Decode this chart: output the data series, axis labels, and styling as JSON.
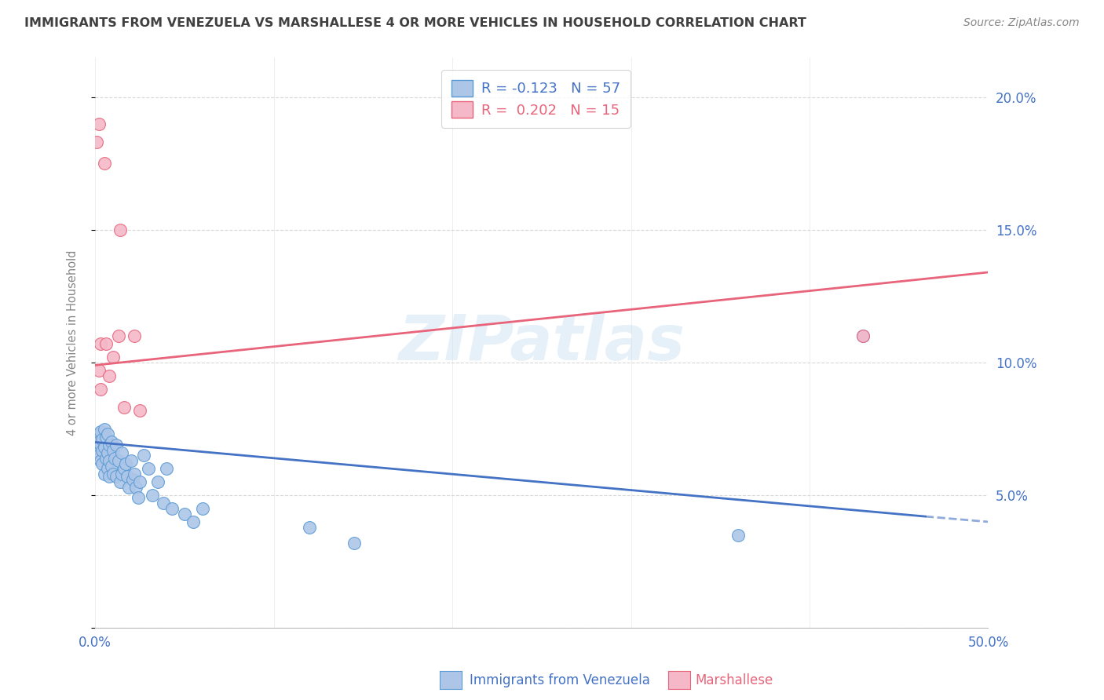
{
  "title": "IMMIGRANTS FROM VENEZUELA VS MARSHALLESE 4 OR MORE VEHICLES IN HOUSEHOLD CORRELATION CHART",
  "source": "Source: ZipAtlas.com",
  "ylabel": "4 or more Vehicles in Household",
  "yticks": [
    0.0,
    0.05,
    0.1,
    0.15,
    0.2
  ],
  "ytick_labels": [
    "",
    "5.0%",
    "10.0%",
    "15.0%",
    "20.0%"
  ],
  "xticks": [
    0.0,
    0.1,
    0.2,
    0.3,
    0.4,
    0.5
  ],
  "xlim": [
    0.0,
    0.5
  ],
  "ylim": [
    0.0,
    0.215
  ],
  "venezuela_R": -0.123,
  "venezuela_N": 57,
  "marshallese_R": 0.202,
  "marshallese_N": 15,
  "venezuela_color": "#adc6e8",
  "venezuela_color_dark": "#5b9bd5",
  "marshallese_color": "#f4b8c8",
  "marshallese_color_dark": "#e8637a",
  "trend_venezuela_color": "#4472c4",
  "trend_marshallese_color": "#e8647a",
  "background_color": "#ffffff",
  "grid_color": "#d0d0d0",
  "axis_label_color": "#4472c4",
  "title_color": "#404040",
  "venezuela_x": [
    0.001,
    0.001,
    0.002,
    0.002,
    0.002,
    0.003,
    0.003,
    0.003,
    0.004,
    0.004,
    0.004,
    0.005,
    0.005,
    0.005,
    0.006,
    0.006,
    0.007,
    0.007,
    0.007,
    0.008,
    0.008,
    0.008,
    0.009,
    0.009,
    0.01,
    0.01,
    0.011,
    0.012,
    0.012,
    0.013,
    0.014,
    0.015,
    0.015,
    0.016,
    0.017,
    0.018,
    0.019,
    0.02,
    0.021,
    0.022,
    0.023,
    0.024,
    0.025,
    0.027,
    0.03,
    0.032,
    0.035,
    0.038,
    0.04,
    0.043,
    0.05,
    0.055,
    0.06,
    0.12,
    0.145,
    0.36,
    0.43
  ],
  "venezuela_y": [
    0.072,
    0.068,
    0.073,
    0.07,
    0.065,
    0.074,
    0.069,
    0.063,
    0.071,
    0.067,
    0.062,
    0.075,
    0.068,
    0.058,
    0.072,
    0.064,
    0.073,
    0.066,
    0.06,
    0.069,
    0.063,
    0.057,
    0.07,
    0.061,
    0.067,
    0.058,
    0.064,
    0.069,
    0.057,
    0.063,
    0.055,
    0.066,
    0.058,
    0.06,
    0.062,
    0.057,
    0.053,
    0.063,
    0.056,
    0.058,
    0.053,
    0.049,
    0.055,
    0.065,
    0.06,
    0.05,
    0.055,
    0.047,
    0.06,
    0.045,
    0.043,
    0.04,
    0.045,
    0.038,
    0.032,
    0.035,
    0.11
  ],
  "marshallese_x": [
    0.001,
    0.002,
    0.003,
    0.003,
    0.005,
    0.006,
    0.008,
    0.01,
    0.013,
    0.014,
    0.016,
    0.022,
    0.025,
    0.43,
    0.002
  ],
  "marshallese_y": [
    0.183,
    0.097,
    0.107,
    0.09,
    0.175,
    0.107,
    0.095,
    0.102,
    0.11,
    0.15,
    0.083,
    0.11,
    0.082,
    0.11,
    0.19
  ],
  "watermark": "ZIPatlas",
  "trend_ven_x0": 0.0,
  "trend_ven_y0": 0.07,
  "trend_ven_x1": 0.465,
  "trend_ven_y1": 0.042,
  "trend_ven_dash_x0": 0.465,
  "trend_ven_dash_y0": 0.042,
  "trend_ven_dash_x1": 0.5,
  "trend_ven_dash_y1": 0.04,
  "trend_mar_x0": 0.0,
  "trend_mar_y0": 0.099,
  "trend_mar_x1": 0.5,
  "trend_mar_y1": 0.134
}
